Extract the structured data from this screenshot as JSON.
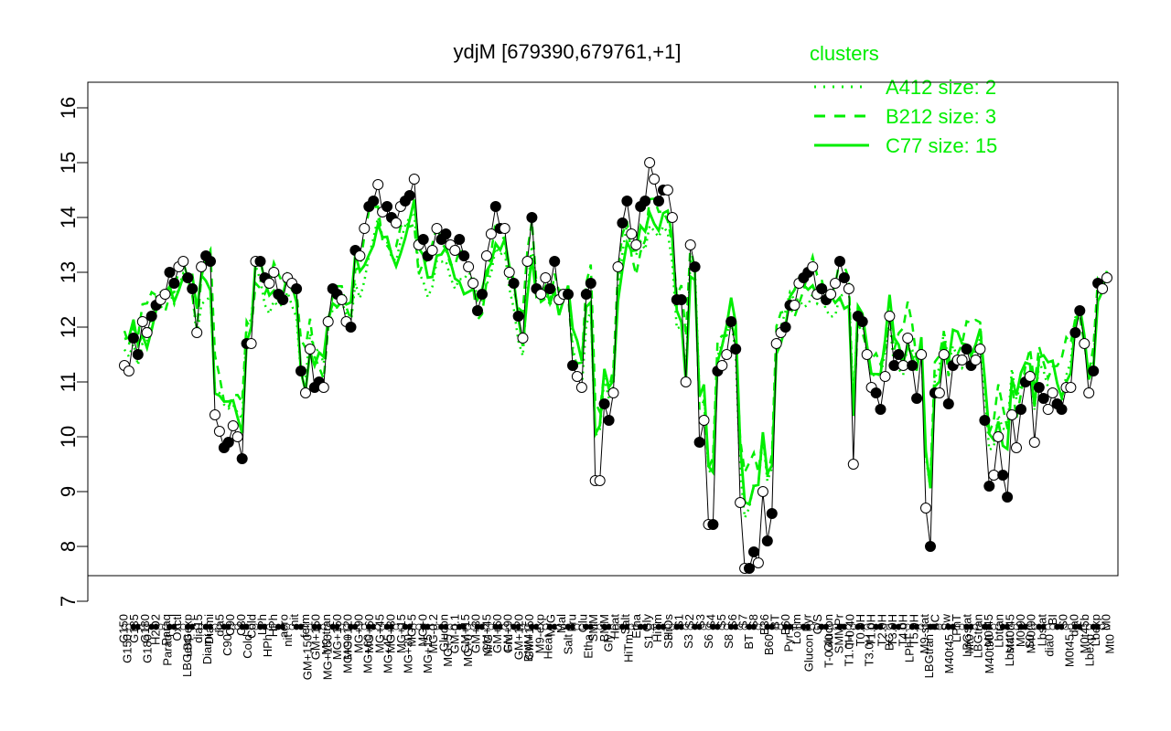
{
  "chart_data": {
    "type": "line",
    "title": "ydjM [679390,679761,+1]",
    "ylim": [
      7,
      16
    ],
    "yticks": [
      7,
      8,
      9,
      10,
      11,
      12,
      13,
      14,
      15,
      16
    ],
    "grid": false,
    "colors": {
      "cluster_line": "#00ee00",
      "points": "#000000",
      "open_fill": "#ffffff",
      "filled_fill": "#000000"
    },
    "legend": {
      "placement": "top-right",
      "title": "clusters",
      "entries": [
        {
          "label": "A412 size: 2",
          "style": "dotted"
        },
        {
          "label": "B212 size: 3",
          "style": "dashed"
        },
        {
          "label": "C77 size: 15",
          "style": "solid"
        }
      ]
    },
    "x_tick_labels_top": [
      "G150",
      "G135",
      "G180",
      "H2O2",
      "Paraq",
      "Oxctl",
      "LBGexp",
      "dia15",
      "Diami",
      "dia5",
      "C90",
      "C30",
      "Cold",
      "LPh",
      "HPh",
      "aero",
      "nit",
      "ferm",
      "GM+150",
      "M9-tran",
      "MG+150",
      "MG+120",
      "MG+90",
      "MG+60",
      "MG+45",
      "MG+30",
      "MG+15",
      "MG+5",
      "MG+0",
      "MG-0.2",
      "Glucon",
      "GM-0.1",
      "GM+15",
      "GM+30",
      "GM+45",
      "GM+60",
      "GM+90",
      "GM+120",
      "GM+150",
      "M9-exp",
      "M/G",
      "Mal",
      "Fru",
      "Glu",
      "SMM",
      "BMM",
      "Heat",
      "Salt",
      "Etha",
      "Gly",
      "HiTm",
      "HiOs",
      "S1",
      "S2",
      "S3",
      "S4",
      "S5",
      "S6",
      "S7",
      "S8",
      "B36",
      "BT",
      "B60",
      "LoTm",
      "Pyr",
      "G/S",
      "Glucon",
      "SMMPr",
      "T-0.40",
      "T0.0H",
      "T1.0H",
      "T2.0H",
      "T3.0H",
      "T4.0H",
      "T5.0H",
      "M9-stat",
      "BC",
      "Sw",
      "LPhT",
      "LBGstat",
      "LBGtran",
      "M0t45",
      "Lbtran",
      "M40t45",
      "M0t90",
      "M40t90",
      "Lbstat",
      "BI",
      "S0",
      "dia0",
      "M0t45b",
      "Lbexp",
      "M0"
    ],
    "x_tick_labels_bottom": [
      "G150",
      "G180",
      "Paraq",
      "LBGexp",
      "Diami",
      "C90",
      "Cold",
      "HPh",
      "nit",
      "GM+150",
      "MG+150",
      "MG+90",
      "MG+60",
      "MG+45",
      "MG+30",
      "MG+15",
      "MG+5",
      "MG+0",
      "M/G",
      "Fru",
      "BMM",
      "Heat",
      "Salt",
      "Etha",
      "Gly",
      "HiTm",
      "S1",
      "S3",
      "S3",
      "S6",
      "S8",
      "BT",
      "B60",
      "Pyr",
      "Glucon",
      "T-0.40",
      "T1.0H",
      "T3.0H",
      "BC",
      "LPhT",
      "LBGtran",
      "M40t45",
      "Mt0",
      "M40t90",
      "Lbstat",
      "S0",
      "dia0",
      "M0t45",
      "Lbexp",
      "Mt0"
    ],
    "series": [
      {
        "values": [
          11.3,
          11.2,
          11.8,
          11.5,
          12.1,
          11.9,
          12.2,
          12.4,
          12.5,
          12.6,
          13.0,
          12.8,
          13.1,
          13.2,
          12.9,
          12.7,
          11.9,
          13.1,
          13.3,
          13.2,
          10.4,
          10.1,
          9.8,
          9.9,
          10.2,
          10.0,
          9.6,
          11.7,
          11.7,
          13.2,
          13.2,
          12.9,
          12.8,
          13.0,
          12.6,
          12.5,
          12.9,
          12.8,
          12.7,
          11.2,
          10.8,
          11.6,
          10.9,
          11.0,
          10.9,
          12.1,
          12.7,
          12.6,
          12.5,
          12.1,
          12.0,
          13.4,
          13.3,
          13.8,
          14.2,
          14.3,
          14.6,
          14.1,
          14.2,
          14.0,
          13.9,
          14.2,
          14.3,
          14.4,
          14.7,
          13.5,
          13.6,
          13.3,
          13.4,
          13.8,
          13.6,
          13.7,
          13.5,
          13.4,
          13.6,
          13.3,
          13.1,
          12.8,
          12.3,
          12.6,
          13.3,
          13.7,
          14.2,
          13.8,
          13.8,
          13.0,
          12.8,
          12.2,
          11.8,
          13.2,
          14.0,
          12.7,
          12.6,
          12.9,
          12.7,
          13.2,
          12.5,
          12.6,
          12.6,
          11.3,
          11.1,
          10.9,
          12.6,
          12.8,
          9.2,
          9.2,
          10.6,
          10.3,
          10.8,
          13.1,
          13.9,
          14.3,
          13.7,
          13.5,
          14.2,
          14.3,
          15.0,
          14.7,
          14.3,
          14.5,
          14.5,
          14.0,
          12.5,
          12.5,
          11.0,
          13.5,
          13.1,
          9.9,
          10.3,
          8.4,
          8.4,
          11.2,
          11.3,
          11.5,
          12.1,
          11.6,
          8.8,
          7.6,
          7.6,
          7.9,
          7.7,
          9.0,
          8.1,
          8.6,
          11.7,
          11.9,
          12.0,
          12.4,
          12.4,
          12.8,
          12.9,
          13.0,
          13.1,
          12.6,
          12.7,
          12.5,
          12.6,
          12.8,
          13.2,
          12.9,
          12.7,
          9.5,
          12.2,
          12.1,
          11.5,
          10.9,
          10.8,
          10.5,
          11.1,
          12.2,
          11.3,
          11.5,
          11.3,
          11.8,
          11.3,
          10.7,
          11.5,
          8.7,
          8.0,
          10.8,
          10.8,
          11.5,
          10.6,
          11.3,
          11.4,
          11.4,
          11.6,
          11.3,
          11.4,
          11.6,
          10.3,
          9.1,
          9.3,
          10.0,
          9.3,
          8.9,
          10.4,
          9.8,
          10.5,
          11.0,
          11.1,
          9.9,
          10.9,
          10.7,
          10.5,
          10.8,
          10.6,
          10.5,
          10.9,
          10.9,
          11.9,
          12.3,
          11.7,
          10.8,
          11.2,
          12.8,
          12.7,
          12.9
        ]
      }
    ]
  }
}
